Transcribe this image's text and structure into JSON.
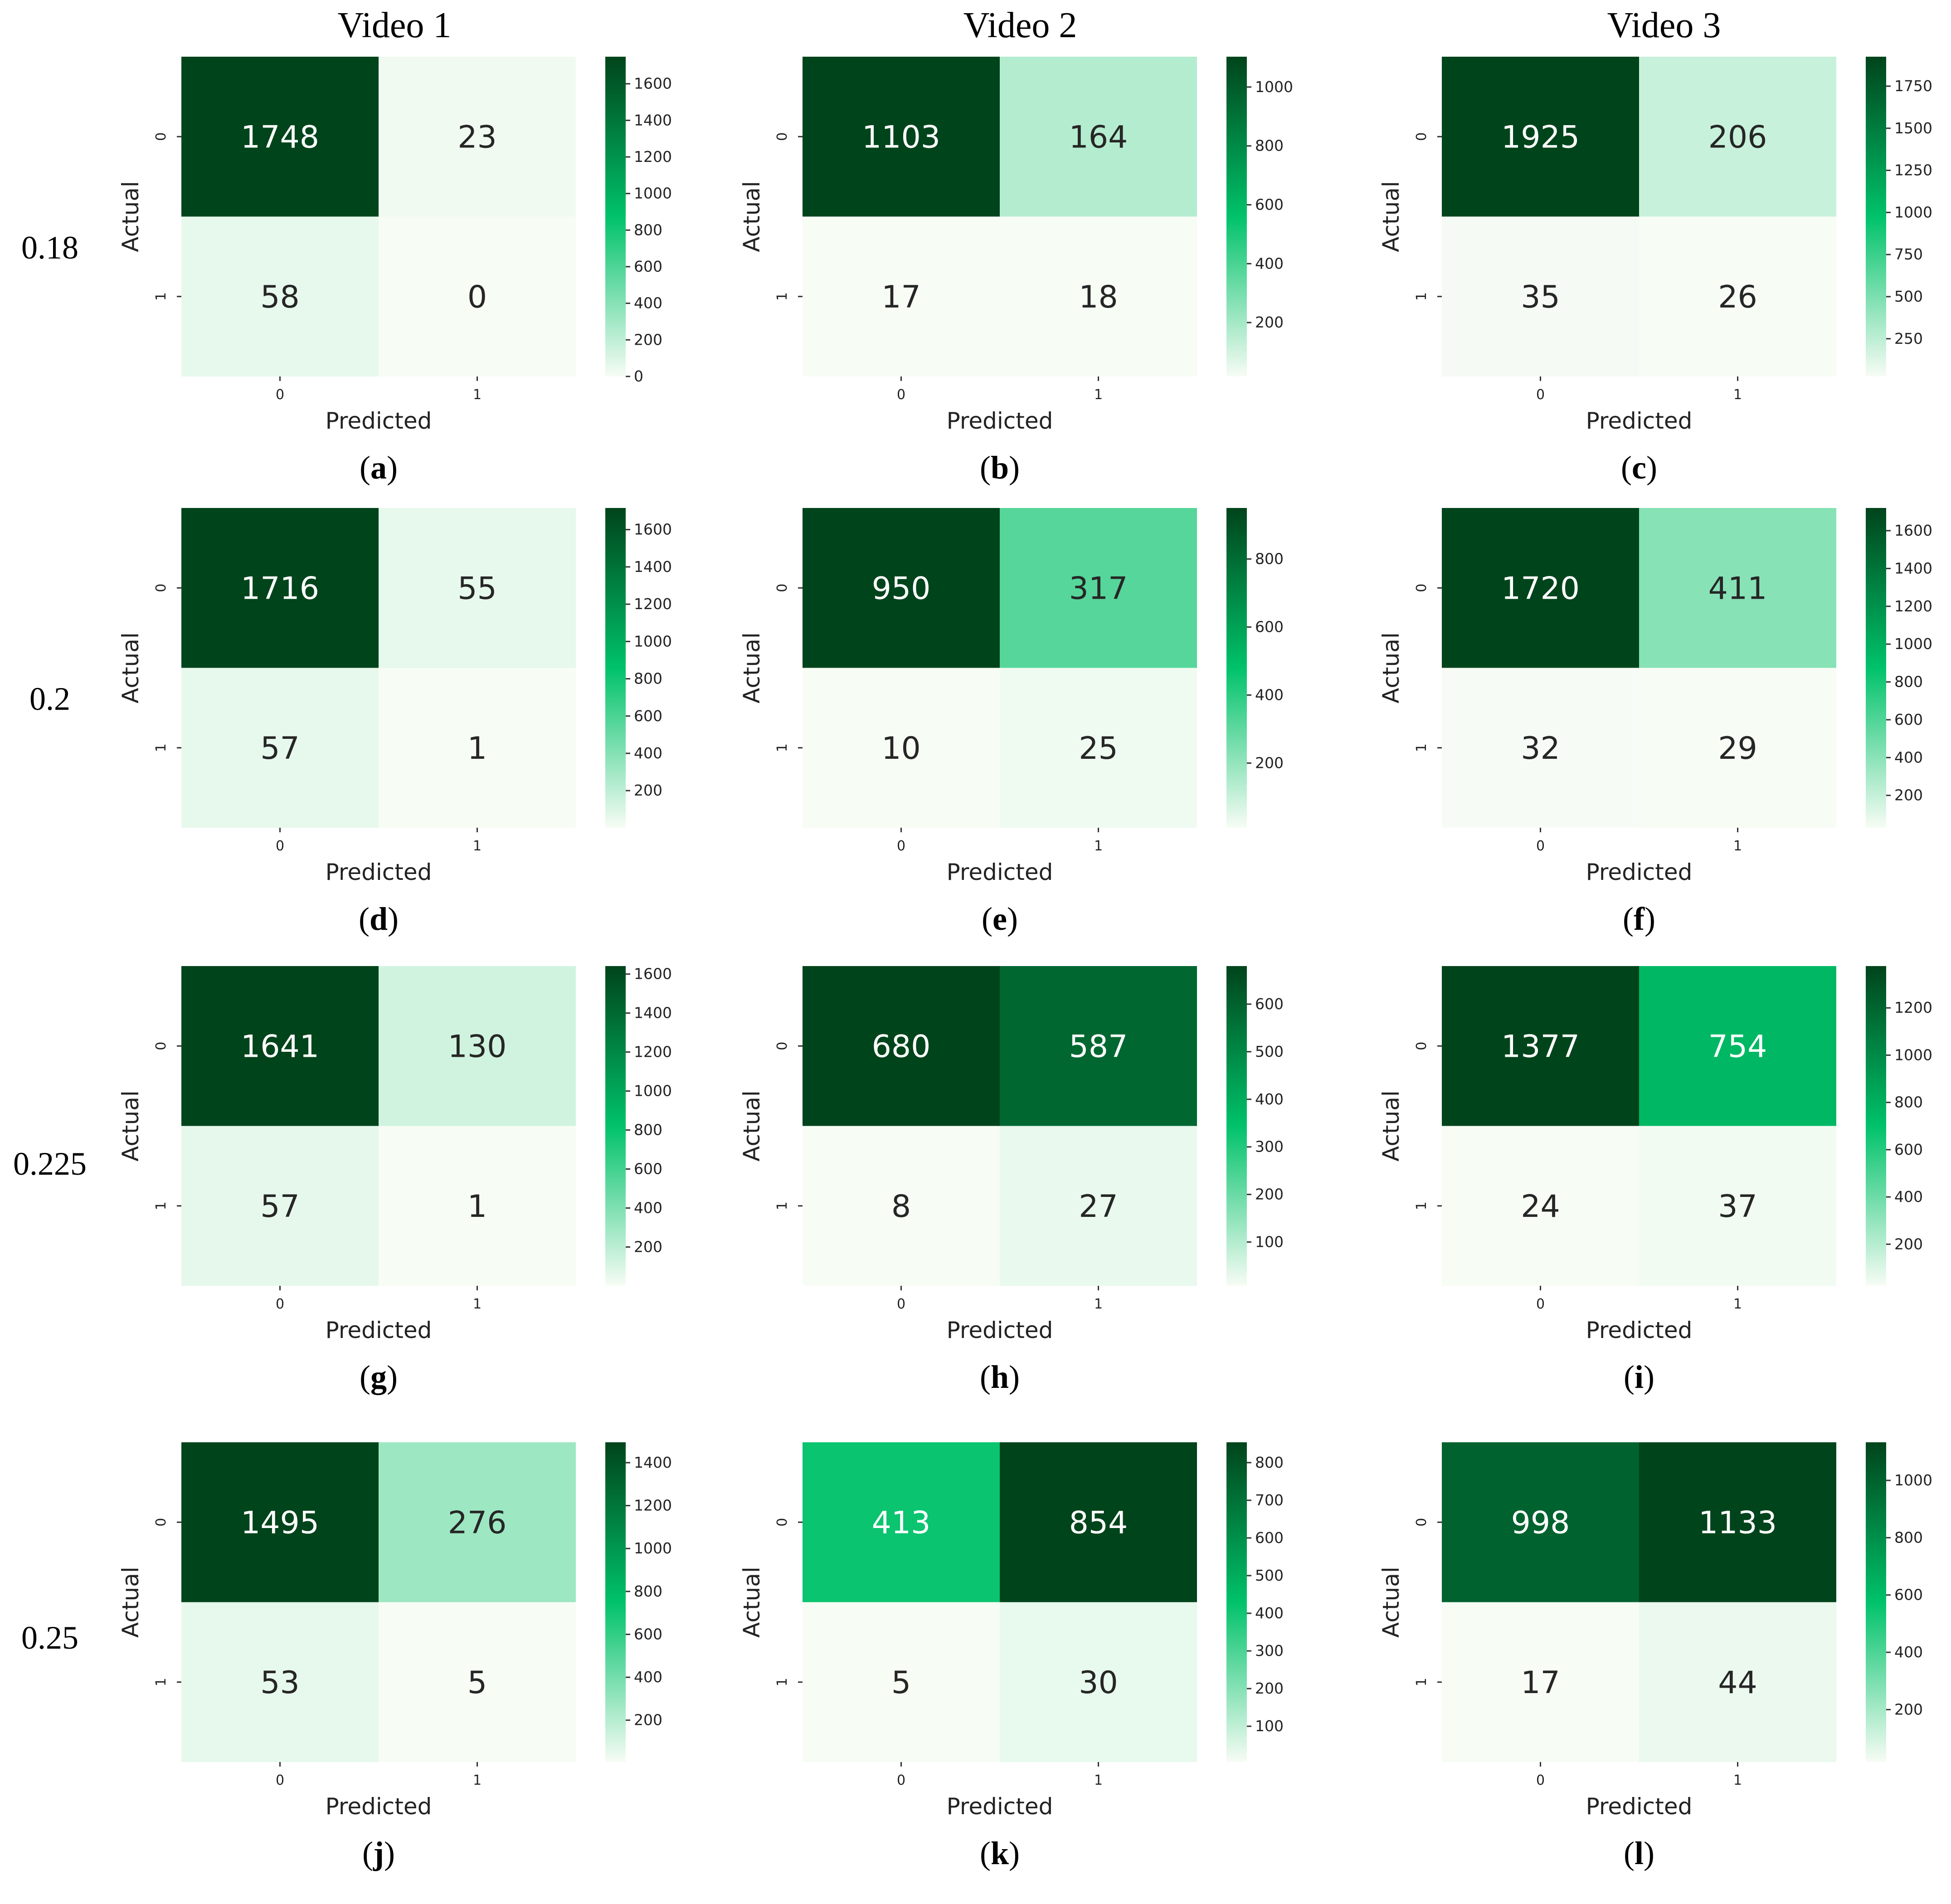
{
  "column_headers": [
    "Video 1",
    "Video 2",
    "Video 3"
  ],
  "row_headers": [
    "0.18",
    "0.2",
    "0.225",
    "0.25"
  ],
  "colors": {
    "low": "#f7fcf5",
    "mid": "#00c26a",
    "high": "#00441b"
  },
  "chart_data": [
    {
      "type": "heatmap",
      "panel": "a",
      "video": "Video 1",
      "threshold": "0.18",
      "matrix": [
        [
          1748,
          23
        ],
        [
          58,
          0
        ]
      ],
      "xlabel": "Predicted",
      "ylabel": "Actual",
      "xticks": [
        "0",
        "1"
      ],
      "yticks": [
        "0",
        "1"
      ],
      "colorbar": {
        "min": 0,
        "max": 1748,
        "ticks": [
          0,
          200,
          400,
          600,
          800,
          1000,
          1200,
          1400,
          1600
        ]
      }
    },
    {
      "type": "heatmap",
      "panel": "b",
      "video": "Video 2",
      "threshold": "0.18",
      "matrix": [
        [
          1103,
          164
        ],
        [
          17,
          18
        ]
      ],
      "xlabel": "Predicted",
      "ylabel": "Actual",
      "xticks": [
        "0",
        "1"
      ],
      "yticks": [
        "0",
        "1"
      ],
      "colorbar": {
        "min": 17,
        "max": 1103,
        "ticks": [
          200,
          400,
          600,
          800,
          1000
        ]
      }
    },
    {
      "type": "heatmap",
      "panel": "c",
      "video": "Video 3",
      "threshold": "0.18",
      "matrix": [
        [
          1925,
          206
        ],
        [
          35,
          26
        ]
      ],
      "xlabel": "Predicted",
      "ylabel": "Actual",
      "xticks": [
        "0",
        "1"
      ],
      "yticks": [
        "0",
        "1"
      ],
      "colorbar": {
        "min": 26,
        "max": 1925,
        "ticks": [
          250,
          500,
          750,
          1000,
          1250,
          1500,
          1750
        ]
      }
    },
    {
      "type": "heatmap",
      "panel": "d",
      "video": "Video 1",
      "threshold": "0.2",
      "matrix": [
        [
          1716,
          55
        ],
        [
          57,
          1
        ]
      ],
      "xlabel": "Predicted",
      "ylabel": "Actual",
      "xticks": [
        "0",
        "1"
      ],
      "yticks": [
        "0",
        "1"
      ],
      "colorbar": {
        "min": 1,
        "max": 1716,
        "ticks": [
          200,
          400,
          600,
          800,
          1000,
          1200,
          1400,
          1600
        ]
      }
    },
    {
      "type": "heatmap",
      "panel": "e",
      "video": "Video 2",
      "threshold": "0.2",
      "matrix": [
        [
          950,
          317
        ],
        [
          10,
          25
        ]
      ],
      "xlabel": "Predicted",
      "ylabel": "Actual",
      "xticks": [
        "0",
        "1"
      ],
      "yticks": [
        "0",
        "1"
      ],
      "colorbar": {
        "min": 10,
        "max": 950,
        "ticks": [
          200,
          400,
          600,
          800
        ]
      }
    },
    {
      "type": "heatmap",
      "panel": "f",
      "video": "Video 3",
      "threshold": "0.2",
      "matrix": [
        [
          1720,
          411
        ],
        [
          32,
          29
        ]
      ],
      "xlabel": "Predicted",
      "ylabel": "Actual",
      "xticks": [
        "0",
        "1"
      ],
      "yticks": [
        "0",
        "1"
      ],
      "colorbar": {
        "min": 29,
        "max": 1720,
        "ticks": [
          200,
          400,
          600,
          800,
          1000,
          1200,
          1400,
          1600
        ]
      }
    },
    {
      "type": "heatmap",
      "panel": "g",
      "video": "Video 1",
      "threshold": "0.225",
      "matrix": [
        [
          1641,
          130
        ],
        [
          57,
          1
        ]
      ],
      "xlabel": "Predicted",
      "ylabel": "Actual",
      "xticks": [
        "0",
        "1"
      ],
      "yticks": [
        "0",
        "1"
      ],
      "colorbar": {
        "min": 1,
        "max": 1641,
        "ticks": [
          200,
          400,
          600,
          800,
          1000,
          1200,
          1400,
          1600
        ]
      }
    },
    {
      "type": "heatmap",
      "panel": "h",
      "video": "Video 2",
      "threshold": "0.225",
      "matrix": [
        [
          680,
          587
        ],
        [
          8,
          27
        ]
      ],
      "xlabel": "Predicted",
      "ylabel": "Actual",
      "xticks": [
        "0",
        "1"
      ],
      "yticks": [
        "0",
        "1"
      ],
      "colorbar": {
        "min": 8,
        "max": 680,
        "ticks": [
          100,
          200,
          300,
          400,
          500,
          600
        ]
      }
    },
    {
      "type": "heatmap",
      "panel": "i",
      "video": "Video 3",
      "threshold": "0.225",
      "matrix": [
        [
          1377,
          754
        ],
        [
          24,
          37
        ]
      ],
      "xlabel": "Predicted",
      "ylabel": "Actual",
      "xticks": [
        "0",
        "1"
      ],
      "yticks": [
        "0",
        "1"
      ],
      "colorbar": {
        "min": 24,
        "max": 1377,
        "ticks": [
          200,
          400,
          600,
          800,
          1000,
          1200
        ]
      }
    },
    {
      "type": "heatmap",
      "panel": "j",
      "video": "Video 1",
      "threshold": "0.25",
      "matrix": [
        [
          1495,
          276
        ],
        [
          53,
          5
        ]
      ],
      "xlabel": "Predicted",
      "ylabel": "Actual",
      "xticks": [
        "0",
        "1"
      ],
      "yticks": [
        "0",
        "1"
      ],
      "colorbar": {
        "min": 5,
        "max": 1495,
        "ticks": [
          200,
          400,
          600,
          800,
          1000,
          1200,
          1400
        ]
      }
    },
    {
      "type": "heatmap",
      "panel": "k",
      "video": "Video 2",
      "threshold": "0.25",
      "matrix": [
        [
          413,
          854
        ],
        [
          5,
          30
        ]
      ],
      "xlabel": "Predicted",
      "ylabel": "Actual",
      "xticks": [
        "0",
        "1"
      ],
      "yticks": [
        "0",
        "1"
      ],
      "colorbar": {
        "min": 5,
        "max": 854,
        "ticks": [
          100,
          200,
          300,
          400,
          500,
          600,
          700,
          800
        ]
      }
    },
    {
      "type": "heatmap",
      "panel": "l",
      "video": "Video 3",
      "threshold": "0.25",
      "matrix": [
        [
          998,
          1133
        ],
        [
          17,
          44
        ]
      ],
      "xlabel": "Predicted",
      "ylabel": "Actual",
      "xticks": [
        "0",
        "1"
      ],
      "yticks": [
        "0",
        "1"
      ],
      "colorbar": {
        "min": 17,
        "max": 1133,
        "ticks": [
          200,
          400,
          600,
          800,
          1000
        ]
      }
    }
  ]
}
